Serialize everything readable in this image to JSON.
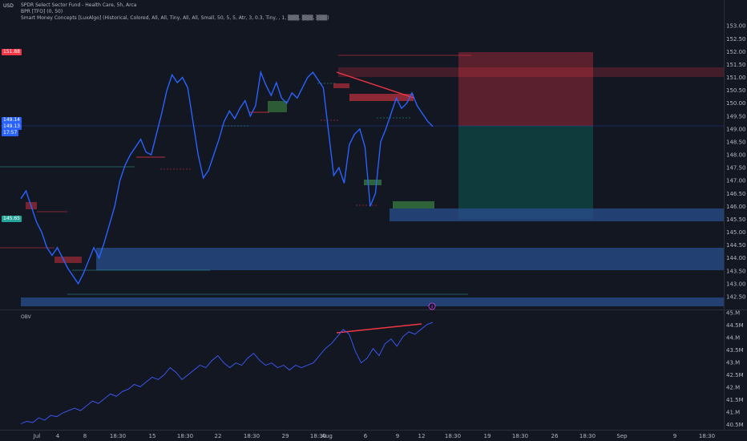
{
  "header": {
    "currency": "USD",
    "title": "SPDR Select Sector Fund - Health Care, 5h, Arca",
    "indicator1": "BPR [TFO] (0, 50)",
    "indicator2": "Smart Money Concepts [LuxAlgo] (Historical, Colored, All, All, Tiny, All, All, Small, 50, 5, 5, Atr, 3, 0.3, Tiny, , 1, ▒▒▒, ▒▒▒, ▒▒▒)",
    "obv_label": "OBV"
  },
  "price_tags": {
    "red": "151.88",
    "blue_top": "149.14",
    "blue_mid": "149.13",
    "blue_time": "17:57",
    "green": "145.65"
  },
  "colors": {
    "background": "#131722",
    "price_line": "#2962ff",
    "obv_line": "#3d5afe",
    "bullish": "#26a69a",
    "bearish": "#f23645",
    "zone_blue": "#2a4f8f",
    "divergence": "#f23645"
  },
  "circle_marker": "4",
  "chart_data": [
    {
      "type": "line",
      "title": "SPDR Select Sector Fund - Health Care, 5h, Arca",
      "ylim": [
        142.25,
        153.1
      ],
      "y_ticks": [
        153.0,
        152.5,
        152.0,
        151.5,
        151.0,
        150.5,
        150.0,
        149.5,
        149.0,
        148.5,
        148.0,
        147.5,
        147.0,
        146.5,
        146.0,
        145.5,
        145.0,
        144.5,
        144.0,
        143.5,
        143.0,
        142.5
      ],
      "x_ticks": [
        "Jul",
        "4",
        "8",
        "18:30",
        "15",
        "18:30",
        "22",
        "18:30",
        "29",
        "18:30",
        "Aug",
        "6",
        "9",
        "12",
        "18:30",
        "19",
        "18:30",
        "26",
        "18:30",
        "Sep",
        "9",
        "18:30"
      ],
      "series": [
        {
          "values": [
            146.3,
            146.6,
            146.0,
            145.4,
            145.0,
            144.4,
            144.1,
            144.4,
            144.0,
            143.6,
            143.3,
            143.0,
            143.4,
            143.9,
            144.4,
            144.0,
            144.6,
            145.3,
            146.0,
            147.0,
            147.6,
            148.0,
            148.3,
            148.6,
            148.1,
            148.0,
            148.8,
            149.6,
            150.5,
            151.1,
            150.8,
            151.0,
            150.6,
            149.3,
            148.0,
            147.1,
            147.4,
            148.0,
            148.6,
            149.3,
            149.7,
            149.4,
            149.8,
            150.1,
            149.5,
            149.9,
            151.2,
            150.7,
            150.3,
            150.8,
            150.2,
            150.0,
            150.4,
            150.2,
            150.6,
            151.0,
            151.2,
            150.9,
            150.6,
            148.9,
            147.2,
            147.5,
            146.9,
            148.4,
            148.8,
            149.0,
            148.3,
            146.0,
            146.5,
            148.5,
            149.0,
            149.6,
            150.2,
            149.8,
            150.0,
            150.4,
            149.9,
            149.6,
            149.3,
            149.1
          ]
        }
      ]
    },
    {
      "type": "line",
      "title": "OBV",
      "ylim": [
        40.4,
        45.1
      ],
      "y_ticks": [
        "45.M",
        "44.5M",
        "44.M",
        "43.5M",
        "43.M",
        "42.5M",
        "42.M",
        "41.5M",
        "41.M",
        "40.5M"
      ],
      "series": [
        {
          "values": [
            40.45,
            40.55,
            40.5,
            40.7,
            40.6,
            40.8,
            40.75,
            40.9,
            41.0,
            41.1,
            41.0,
            41.2,
            41.4,
            41.3,
            41.5,
            41.7,
            41.6,
            41.8,
            41.9,
            42.1,
            42.0,
            42.2,
            42.4,
            42.3,
            42.5,
            42.8,
            42.6,
            42.3,
            42.5,
            42.7,
            42.9,
            42.8,
            43.1,
            43.3,
            43.0,
            42.8,
            43.0,
            42.9,
            43.2,
            43.4,
            43.1,
            42.9,
            43.0,
            42.8,
            42.9,
            42.7,
            42.9,
            42.8,
            42.9,
            43.0,
            43.3,
            43.6,
            43.8,
            44.1,
            44.4,
            44.2,
            43.5,
            43.0,
            43.2,
            43.6,
            43.3,
            43.8,
            44.0,
            43.7,
            44.1,
            44.3,
            44.2,
            44.4,
            44.6,
            44.7
          ]
        }
      ]
    }
  ]
}
